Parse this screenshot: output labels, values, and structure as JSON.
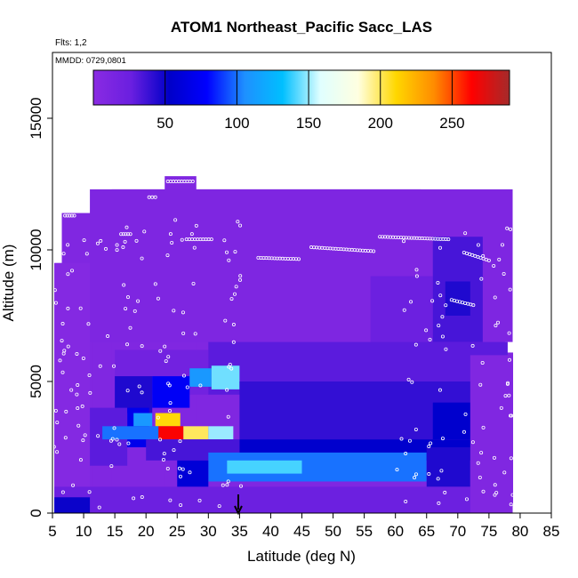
{
  "chart_data": {
    "type": "heatmap",
    "title": "ATOM1 Northeast_Pacific Sacc_LAS",
    "flights_note": "Flts: 1,2",
    "dates_note": "MMDD: 0729,0801",
    "xlabel": "Latitude (deg N)",
    "ylabel": "Altitude (m)",
    "xlim": [
      5,
      85
    ],
    "ylim": [
      0,
      17500
    ],
    "x_ticks": [
      5,
      10,
      15,
      20,
      25,
      30,
      35,
      40,
      45,
      50,
      55,
      60,
      65,
      70,
      75,
      80,
      85
    ],
    "y_ticks": [
      0,
      5000,
      10000,
      15000
    ],
    "colorbar": {
      "range": [
        0,
        290
      ],
      "ticks": [
        50,
        100,
        150,
        200,
        250
      ],
      "colors": [
        "#8a2be2",
        "#6a1fe0",
        "#0000c8",
        "#0000ff",
        "#1e90ff",
        "#00bfff",
        "#e0ffff",
        "#ffffe0",
        "#ffd700",
        "#ff8c00",
        "#ff0000",
        "#a52a2a"
      ]
    },
    "marker": {
      "x": 34.8,
      "symbol": "down-arrow"
    },
    "grid": false,
    "columns": [
      {
        "x0": 6.5,
        "x1": 11.5,
        "top": 11400
      },
      {
        "x0": 11.5,
        "x1": 14.5,
        "top": 11800
      },
      {
        "x0": 14.5,
        "x1": 23.0,
        "top": 12300
      },
      {
        "x0": 23.0,
        "x1": 28.0,
        "top": 12800
      },
      {
        "x0": 28.0,
        "x1": 64.0,
        "top": 12300
      },
      {
        "x0": 64.0,
        "x1": 69.0,
        "top": 11300
      },
      {
        "x0": 69.0,
        "x1": 72.5,
        "top": 10600
      },
      {
        "x0": 72.5,
        "x1": 75.0,
        "top": 9300
      },
      {
        "x0": 75.0,
        "x1": 76.5,
        "top": 8000
      },
      {
        "x0": 76.5,
        "x1": 77.5,
        "top": 7200
      },
      {
        "x0": 77.5,
        "x1": 78.8,
        "top": 6100
      },
      {
        "x0": 5.3,
        "x1": 6.5,
        "top": 9500
      }
    ],
    "regions": [
      {
        "x0": 5.3,
        "x1": 11,
        "y0": 0,
        "y1": 9500,
        "value": 5
      },
      {
        "x0": 11,
        "x1": 78.8,
        "y0": 6500,
        "y1": 12300,
        "value": 10
      },
      {
        "x0": 56,
        "x1": 66,
        "y0": 6000,
        "y1": 9000,
        "value": 25
      },
      {
        "x0": 66,
        "x1": 74,
        "y0": 6500,
        "y1": 10500,
        "value": 35
      },
      {
        "x0": 68,
        "x1": 72,
        "y0": 7500,
        "y1": 8800,
        "value": 45
      },
      {
        "x0": 15,
        "x1": 30,
        "y0": 4500,
        "y1": 6200,
        "value": 20
      },
      {
        "x0": 30,
        "x1": 78,
        "y0": 4500,
        "y1": 6500,
        "value": 30
      },
      {
        "x0": 15,
        "x1": 21,
        "y0": 3800,
        "y1": 5200,
        "value": 45
      },
      {
        "x0": 21,
        "x1": 27,
        "y0": 4000,
        "y1": 5200,
        "value": 75
      },
      {
        "x0": 27,
        "x1": 30.5,
        "y0": 4800,
        "y1": 5500,
        "value": 110
      },
      {
        "x0": 30.5,
        "x1": 35,
        "y0": 4700,
        "y1": 5600,
        "value": 145
      },
      {
        "x0": 35,
        "x1": 78,
        "y0": 2800,
        "y1": 5000,
        "value": 40
      },
      {
        "x0": 66,
        "x1": 78,
        "y0": 2800,
        "y1": 4200,
        "value": 55
      },
      {
        "x0": 11,
        "x1": 17,
        "y0": 1800,
        "y1": 4000,
        "value": 30
      },
      {
        "x0": 17,
        "x1": 20.5,
        "y0": 2500,
        "y1": 4000,
        "value": 70
      },
      {
        "x0": 18,
        "x1": 21,
        "y0": 3300,
        "y1": 3800,
        "value": 110
      },
      {
        "x0": 21.5,
        "x1": 25.5,
        "y0": 3300,
        "y1": 3800,
        "value": 210
      },
      {
        "x0": 13,
        "x1": 22,
        "y0": 2800,
        "y1": 3300,
        "value": 100
      },
      {
        "x0": 22,
        "x1": 26,
        "y0": 2800,
        "y1": 3300,
        "value": 265
      },
      {
        "x0": 26,
        "x1": 30,
        "y0": 2800,
        "y1": 3300,
        "value": 200
      },
      {
        "x0": 30,
        "x1": 34,
        "y0": 2800,
        "y1": 3300,
        "value": 150
      },
      {
        "x0": 20,
        "x1": 35,
        "y0": 2000,
        "y1": 2800,
        "value": 35
      },
      {
        "x0": 35,
        "x1": 78,
        "y0": 2000,
        "y1": 2800,
        "value": 55
      },
      {
        "x0": 30,
        "x1": 65,
        "y0": 1200,
        "y1": 2300,
        "value": 100
      },
      {
        "x0": 33,
        "x1": 45,
        "y0": 1500,
        "y1": 2000,
        "value": 140
      },
      {
        "x0": 25,
        "x1": 30,
        "y0": 1000,
        "y1": 2000,
        "value": 60
      },
      {
        "x0": 65,
        "x1": 72,
        "y0": 1000,
        "y1": 2500,
        "value": 45
      },
      {
        "x0": 5.3,
        "x1": 78.8,
        "y0": 0,
        "y1": 1000,
        "value": 25
      },
      {
        "x0": 5.3,
        "x1": 11,
        "y0": 0,
        "y1": 600,
        "value": 50
      },
      {
        "x0": 72,
        "x1": 78.8,
        "y0": 0,
        "y1": 6000,
        "value": 8
      },
      {
        "x0": 78.8,
        "x1": 79.8,
        "y0": 0,
        "y1": 300,
        "value": 0
      }
    ],
    "flight_track_legs": [
      [
        [
          23.5,
          12600
        ],
        [
          27.5,
          12600
        ]
      ],
      [
        [
          26.5,
          10400
        ],
        [
          30.5,
          10400
        ]
      ],
      [
        [
          38,
          9700
        ],
        [
          44.5,
          9650
        ]
      ],
      [
        [
          46.5,
          10100
        ],
        [
          56.5,
          9950
        ]
      ],
      [
        [
          57.5,
          10500
        ],
        [
          68.5,
          10400
        ]
      ],
      [
        [
          71,
          9900
        ],
        [
          75,
          9600
        ]
      ],
      [
        [
          69,
          8100
        ],
        [
          72.5,
          7900
        ]
      ],
      [
        [
          20.5,
          12000
        ],
        [
          21.5,
          12000
        ]
      ],
      [
        [
          16,
          10600
        ],
        [
          17.5,
          10600
        ]
      ],
      [
        [
          7,
          11300
        ],
        [
          8.5,
          11300
        ]
      ]
    ]
  }
}
